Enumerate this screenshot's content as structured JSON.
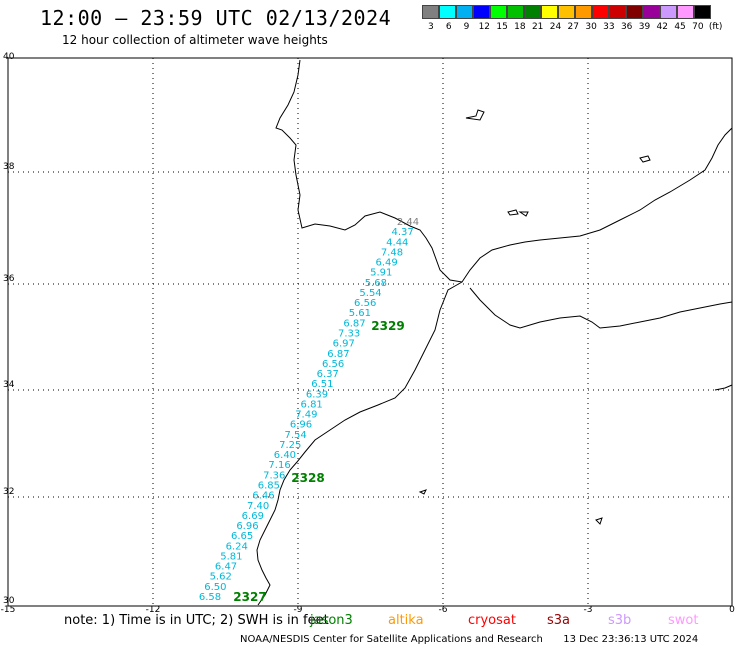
{
  "header": {
    "title": "12:00 – 23:59 UTC 02/13/2024",
    "subtitle": "12 hour collection of altimeter wave heights"
  },
  "legend": {
    "colors": [
      "#808080",
      "#00ffff",
      "#00b0f0",
      "#0000ff",
      "#00ff00",
      "#00c000",
      "#008000",
      "#ffff00",
      "#ffc000",
      "#ff9900",
      "#ff0000",
      "#cc0000",
      "#800000",
      "#990099",
      "#cc99ff",
      "#ff99ff",
      "#000000"
    ],
    "labels": [
      "3",
      "6",
      "9",
      "12",
      "15",
      "18",
      "21",
      "24",
      "27",
      "30",
      "33",
      "36",
      "39",
      "42",
      "45",
      "70",
      "(ft)"
    ]
  },
  "axes": {
    "lat_labels": [
      "40",
      "38",
      "36",
      "34",
      "32",
      "30"
    ],
    "lon_labels": [
      "-15",
      "-12",
      "-9",
      "-6",
      "-3",
      "0"
    ]
  },
  "track": {
    "values": [
      "2.44",
      "4.37",
      "4.44",
      "7.48",
      "6.49",
      "5.91",
      "5.68",
      "5.54",
      "6.56",
      "5.61",
      "6.87",
      "7.33",
      "6.97",
      "6.87",
      "6.56",
      "6.37",
      "6.51",
      "6.39",
      "6.81",
      "7.49",
      "6.96",
      "7.54",
      "7.25",
      "6.40",
      "7.16",
      "7.36",
      "6.85",
      "6.46",
      "7.40",
      "6.69",
      "6.96",
      "6.65",
      "6.24",
      "5.81",
      "6.47",
      "5.62",
      "6.50",
      "6.58"
    ],
    "pass_labels": [
      "2329",
      "2328",
      "2327"
    ]
  },
  "note": {
    "text": "note: 1) Time is in UTC; 2) SWH is in feet"
  },
  "satellites": [
    "jason3",
    "altika",
    "cryosat",
    "s3a",
    "s3b",
    "swot"
  ],
  "satellite_colors": [
    "#008000",
    "#ff9900",
    "#ff0000",
    "#990000",
    "#cc99ff",
    "#ff99ff"
  ],
  "footer": {
    "credit": "NOAA/NESDIS Center for Satellite Applications and Research",
    "timestamp": "13 Dec 23:36:13 UTC 2024"
  }
}
